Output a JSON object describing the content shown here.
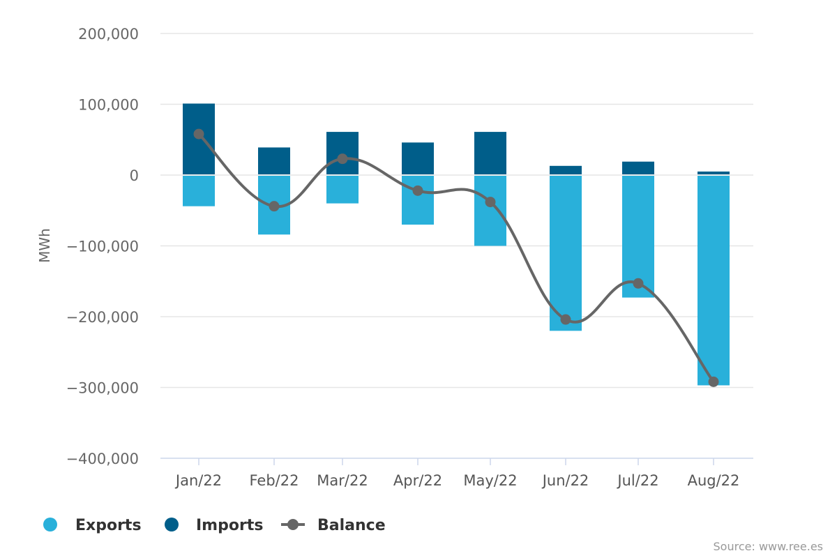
{
  "chart_data": {
    "type": "bar",
    "categories": [
      "Jan/22",
      "Feb/22",
      "Mar/22",
      "Apr/22",
      "May/22",
      "Jun/22",
      "Jul/22",
      "Aug/22"
    ],
    "series": [
      {
        "name": "Exports",
        "type": "bar",
        "color": "#29b0da",
        "values": [
          -44000,
          -84000,
          -40000,
          -70000,
          -100000,
          -220000,
          -173000,
          -297000
        ]
      },
      {
        "name": "Imports",
        "type": "bar",
        "color": "#005e8a",
        "values": [
          101000,
          39000,
          61000,
          46000,
          61000,
          13000,
          19000,
          5000
        ]
      },
      {
        "name": "Balance",
        "type": "line",
        "color": "#666666",
        "values": [
          58000,
          -44000,
          23000,
          -22000,
          -38000,
          -204000,
          -153000,
          -292000
        ]
      }
    ],
    "ylabel": "MWh",
    "xlabel": "",
    "ylim": [
      -400000,
      200000
    ],
    "yticks": [
      200000,
      100000,
      0,
      -100000,
      -200000,
      -300000,
      -400000
    ],
    "ytick_labels": [
      "200,000",
      "100,000",
      "0",
      "−100,000",
      "−200,000",
      "−300,000",
      "−400,000"
    ],
    "grid": true,
    "legend_position": "bottom-left",
    "stacked": true
  },
  "source": "Source: www.ree.es"
}
